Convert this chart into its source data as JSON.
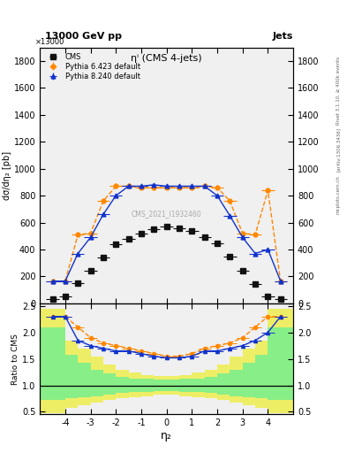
{
  "title_top": "13000 GeV pp",
  "title_right": "Jets",
  "plot_title": "ηⁱ (CMS 4-jets)",
  "xlabel": "η₂",
  "ylabel_main": "dσ/dη₂ [pb]",
  "ylabel_scale": "×13000",
  "ylabel_ratio": "Ratio to CMS",
  "watermark": "CMS_2021_I1932460",
  "right_label_top": "Rivet 3.1.10, ≥ 400k events",
  "right_label_mid": "[arXiv:1306.3436]",
  "right_label_bot": "mcplots.cern.ch",
  "cms_eta": [
    -4.5,
    -4.0,
    -3.5,
    -3.0,
    -2.5,
    -2.0,
    -1.5,
    -1.0,
    -0.5,
    0.0,
    0.5,
    1.0,
    1.5,
    2.0,
    2.5,
    3.0,
    3.5,
    4.0,
    4.5
  ],
  "cms_values": [
    30,
    50,
    150,
    240,
    340,
    440,
    480,
    520,
    550,
    570,
    555,
    535,
    490,
    445,
    345,
    240,
    145,
    50,
    30
  ],
  "pythia6_eta": [
    -4.5,
    -4.0,
    -3.5,
    -3.0,
    -2.5,
    -2.0,
    -1.5,
    -1.0,
    -0.5,
    0.0,
    0.5,
    1.0,
    1.5,
    2.0,
    2.5,
    3.0,
    3.5,
    4.0,
    4.5
  ],
  "pythia6_values": [
    165,
    165,
    510,
    520,
    760,
    870,
    870,
    860,
    860,
    860,
    860,
    860,
    870,
    860,
    760,
    520,
    510,
    840,
    165
  ],
  "pythia8_eta": [
    -4.5,
    -4.0,
    -3.5,
    -3.0,
    -2.5,
    -2.0,
    -1.5,
    -1.0,
    -0.5,
    0.0,
    0.5,
    1.0,
    1.5,
    2.0,
    2.5,
    3.0,
    3.5,
    4.0,
    4.5
  ],
  "pythia8_values": [
    165,
    165,
    370,
    490,
    660,
    800,
    870,
    870,
    880,
    870,
    870,
    870,
    870,
    800,
    650,
    490,
    370,
    400,
    165
  ],
  "ratio_pythia6_eta": [
    -4.5,
    -4.0,
    -3.5,
    -3.0,
    -2.5,
    -2.0,
    -1.5,
    -1.0,
    -0.5,
    0.0,
    0.5,
    1.0,
    1.5,
    2.0,
    2.5,
    3.0,
    3.5,
    4.0,
    4.5
  ],
  "ratio_pythia6": [
    2.3,
    2.3,
    2.1,
    1.9,
    1.8,
    1.75,
    1.7,
    1.65,
    1.6,
    1.55,
    1.55,
    1.6,
    1.7,
    1.75,
    1.8,
    1.9,
    2.1,
    2.3,
    2.3
  ],
  "ratio_pythia8_eta": [
    -4.5,
    -4.0,
    -3.5,
    -3.0,
    -2.5,
    -2.0,
    -1.5,
    -1.0,
    -0.5,
    0.0,
    0.5,
    1.0,
    1.5,
    2.0,
    2.5,
    3.0,
    3.5,
    4.0,
    4.5
  ],
  "ratio_pythia8": [
    2.3,
    2.3,
    1.85,
    1.75,
    1.7,
    1.65,
    1.65,
    1.6,
    1.55,
    1.52,
    1.52,
    1.55,
    1.65,
    1.65,
    1.7,
    1.75,
    1.85,
    2.0,
    2.3
  ],
  "ylim_main": [
    0,
    1900
  ],
  "ylim_ratio": [
    0.45,
    2.55
  ],
  "yticks_main": [
    0,
    200,
    400,
    600,
    800,
    1000,
    1200,
    1400,
    1600,
    1800
  ],
  "yticks_ratio": [
    0.5,
    1.0,
    1.5,
    2.0,
    2.5
  ],
  "xlim": [
    -5.0,
    5.0
  ],
  "xticks": [
    -4,
    -3,
    -2,
    -1,
    0,
    1,
    2,
    3,
    4
  ],
  "bg_color": "#f0f0f0",
  "cms_color": "#111111",
  "pythia6_color": "#ff8800",
  "pythia8_color": "#1133cc",
  "green_band_color": "#88ee88",
  "yellow_band_color": "#eeee66",
  "yellow_band_bins": [
    -5.0,
    -4.5,
    -4.0,
    -3.5,
    -3.0,
    -2.5,
    -2.0,
    -1.5,
    -1.0,
    -0.5,
    0.0,
    0.5,
    1.0,
    1.5,
    2.0,
    2.5,
    3.0,
    3.5,
    4.0,
    4.5,
    5.0
  ],
  "yellow_lo": [
    0.47,
    0.47,
    0.58,
    0.62,
    0.67,
    0.72,
    0.76,
    0.78,
    0.8,
    0.82,
    0.82,
    0.8,
    0.78,
    0.76,
    0.72,
    0.67,
    0.62,
    0.58,
    0.47,
    0.47
  ],
  "yellow_hi": [
    2.45,
    2.45,
    1.85,
    1.7,
    1.55,
    1.4,
    1.3,
    1.24,
    1.2,
    1.18,
    1.18,
    1.2,
    1.24,
    1.3,
    1.4,
    1.55,
    1.7,
    1.85,
    2.45,
    2.45
  ],
  "green_lo": [
    0.72,
    0.72,
    0.76,
    0.78,
    0.8,
    0.83,
    0.86,
    0.87,
    0.88,
    0.89,
    0.89,
    0.88,
    0.87,
    0.86,
    0.83,
    0.8,
    0.78,
    0.76,
    0.72,
    0.72
  ],
  "green_hi": [
    2.1,
    2.1,
    1.58,
    1.42,
    1.3,
    1.22,
    1.16,
    1.13,
    1.12,
    1.11,
    1.11,
    1.12,
    1.13,
    1.16,
    1.22,
    1.3,
    1.42,
    1.58,
    2.1,
    2.1
  ]
}
